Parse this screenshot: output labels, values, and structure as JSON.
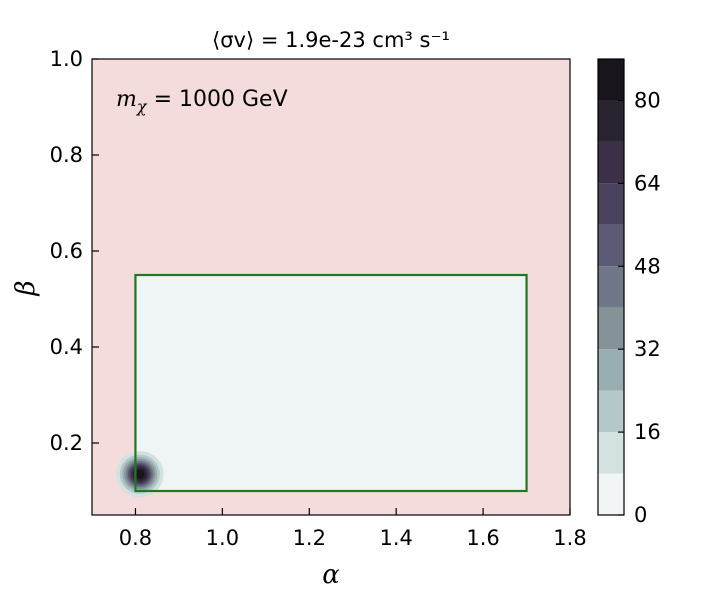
{
  "chart_data": {
    "type": "heatmap",
    "title": "⟨σv⟩ = 1.9e-23 cm³ s⁻¹",
    "xlabel": "α",
    "ylabel": "β",
    "xlim": [
      0.7,
      1.8
    ],
    "ylim": [
      0.05,
      1.0
    ],
    "xticks": [
      0.8,
      1.0,
      1.2,
      1.4,
      1.6,
      1.8
    ],
    "yticks": [
      0.2,
      0.4,
      0.6,
      0.8,
      1.0
    ],
    "xtick_labels": [
      "0.8",
      "1.0",
      "1.2",
      "1.4",
      "1.6",
      "1.8"
    ],
    "ytick_labels": [
      "0.2",
      "0.4",
      "0.6",
      "0.8",
      "1.0"
    ],
    "annotation": "m_χ = 1000 GeV",
    "background_color": "#f3dcdb",
    "rectangle": {
      "x0": 0.8,
      "x1": 1.7,
      "y0": 0.1,
      "y1": 0.55,
      "edge_color": "#1f7a1f",
      "face_color": "#eef5f4"
    },
    "contour": {
      "peak_alpha": 0.81,
      "peak_beta": 0.135,
      "peak_value": 88,
      "sigma_alpha": 0.025,
      "sigma_beta": 0.022
    },
    "colorbar": {
      "min": 0,
      "max": 88,
      "levels": [
        0,
        8,
        16,
        24,
        32,
        40,
        48,
        56,
        64,
        72,
        80,
        88
      ],
      "ticks": [
        0,
        16,
        32,
        48,
        64,
        80
      ],
      "tick_labels": [
        "0",
        "16",
        "32",
        "48",
        "64",
        "80"
      ],
      "colors": [
        "#f1f5f5",
        "#d4e1e1",
        "#b5c8c9",
        "#99aeb1",
        "#859399",
        "#6f7788",
        "#5c5a74",
        "#4a415c",
        "#3b3047",
        "#2a2431",
        "#18161c"
      ]
    },
    "grid": false,
    "legend": "none"
  }
}
